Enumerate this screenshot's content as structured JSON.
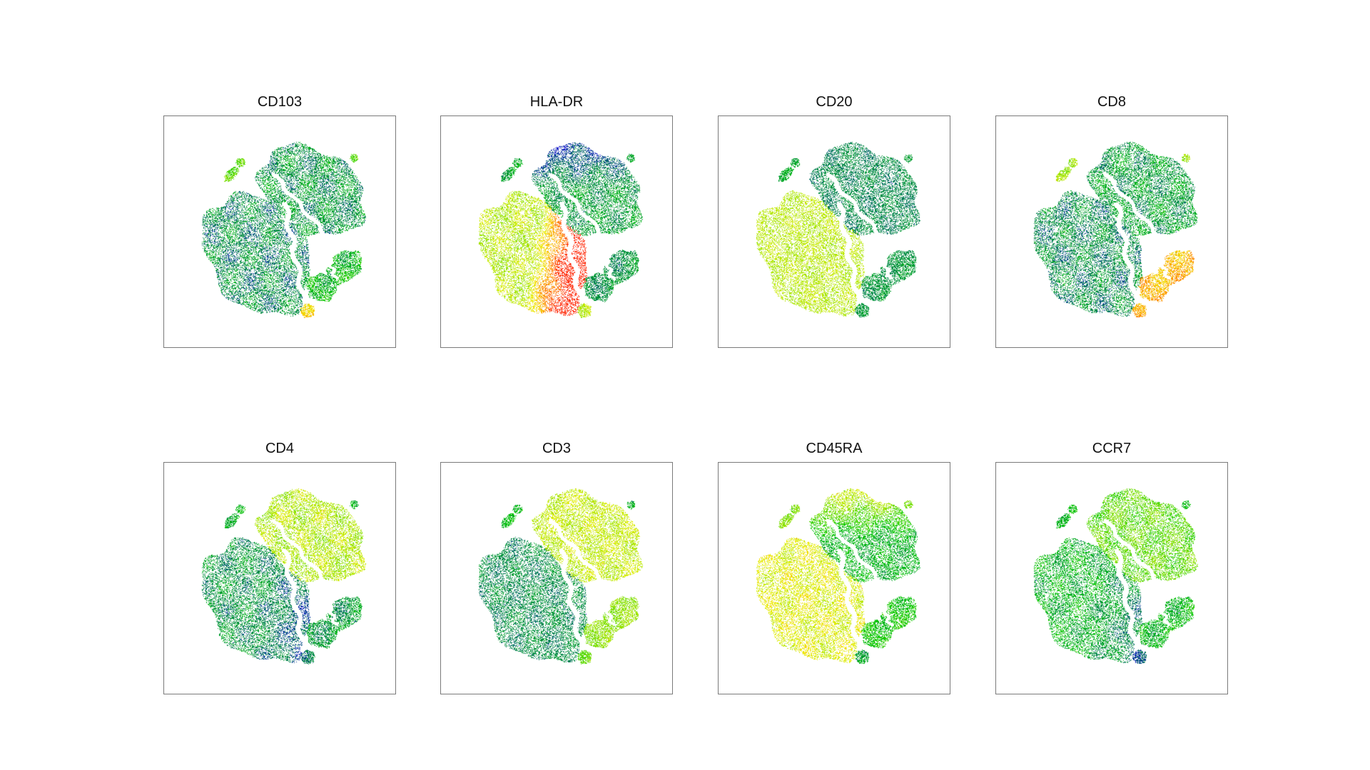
{
  "chart_data": {
    "type": "scatter",
    "description_kind": "t-SNE embedding colored by marker expression",
    "colormap": [
      "#0000cc",
      "#008844",
      "#00c800",
      "#7fe000",
      "#f0f000",
      "#ff9900",
      "#ff2200"
    ],
    "point_color_empty": "#ffffff",
    "panels": [
      {
        "title": "CD103",
        "levels": {
          "bigB": 0.18,
          "bigBHi": 0.0,
          "tr": 0.2,
          "trHi": 0.0,
          "sm": 0.3,
          "smHi": 0.0,
          "spot": 0.75,
          "spl": 0.45,
          "noise": 0.14
        }
      },
      {
        "title": "HLA-DR",
        "levels": {
          "bigB": 0.58,
          "bigBHi": 0.82,
          "tr": 0.22,
          "trHi": -0.22,
          "sm": 0.2,
          "smHi": 0.0,
          "spot": 0.6,
          "spl": 0.25,
          "noise": 0.1
        }
      },
      {
        "title": "CD20",
        "levels": {
          "bigB": 0.58,
          "bigBHi": 0.0,
          "tr": 0.17,
          "trHi": 0.0,
          "sm": 0.2,
          "smHi": 0.0,
          "spot": 0.2,
          "spl": 0.25,
          "noise": 0.06
        }
      },
      {
        "title": "CD8",
        "levels": {
          "bigB": 0.18,
          "bigBHi": 0.0,
          "tr": 0.22,
          "trHi": 0.0,
          "sm": 0.78,
          "smHi": 0.0,
          "spot": 0.82,
          "spl": 0.55,
          "noise": 0.13
        }
      },
      {
        "title": "CD4",
        "levels": {
          "bigB": 0.2,
          "bigBHi": -0.12,
          "tr": 0.57,
          "trHi": 0.0,
          "sm": 0.22,
          "smHi": 0.0,
          "spot": 0.18,
          "spl": 0.28,
          "noise": 0.12
        }
      },
      {
        "title": "CD3",
        "levels": {
          "bigB": 0.18,
          "bigBHi": 0.0,
          "tr": 0.6,
          "trHi": 0.0,
          "sm": 0.52,
          "smHi": 0.0,
          "spot": 0.45,
          "spl": 0.3,
          "noise": 0.08
        }
      },
      {
        "title": "CD45RA",
        "levels": {
          "bigB": 0.64,
          "bigBHi": 0.0,
          "tr": 0.28,
          "trHi": 0.45,
          "sm": 0.34,
          "smHi": 0.0,
          "spot": 0.25,
          "spl": 0.5,
          "noise": 0.1
        }
      },
      {
        "title": "CCR7",
        "levels": {
          "bigB": 0.28,
          "bigBHi": -0.15,
          "tr": 0.45,
          "trHi": 0.0,
          "sm": 0.3,
          "smHi": 0.0,
          "spot": 0.12,
          "spl": 0.3,
          "noise": 0.12
        }
      }
    ]
  }
}
